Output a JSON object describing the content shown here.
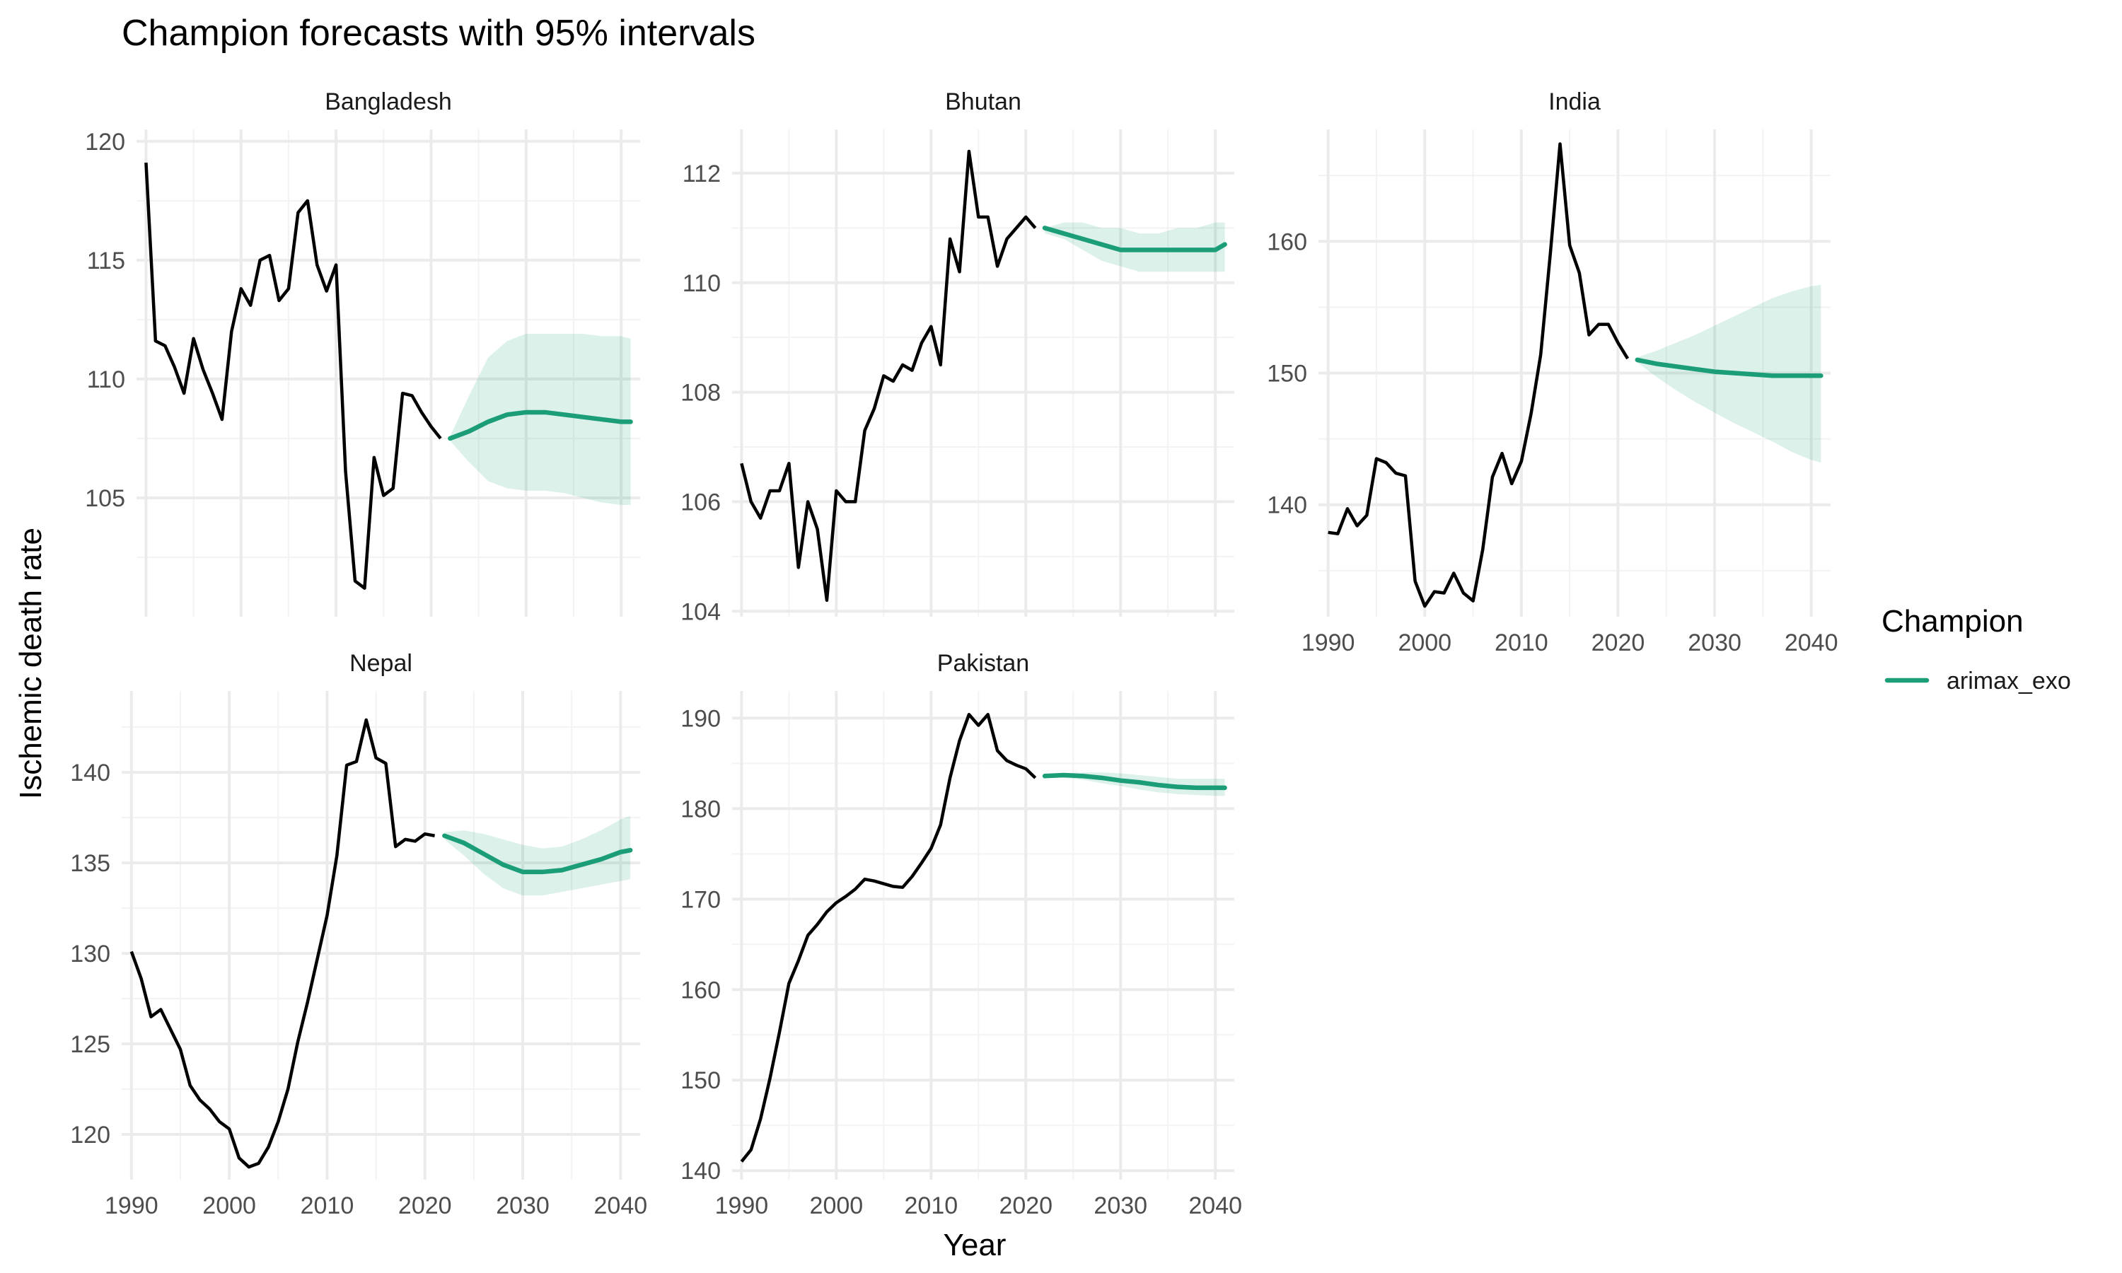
{
  "chart_data": {
    "type": "line",
    "title": "Champion forecasts with 95% intervals",
    "xlabel": "Year",
    "ylabel": "Ischemic death rate",
    "legend": {
      "title": "Champion",
      "placement": "right",
      "entries": [
        {
          "label": "arimax_exo",
          "color": "#1b9e77"
        }
      ]
    },
    "colors": {
      "history": "#000000",
      "forecast": "#1b9e77",
      "band": "#1b9e77"
    },
    "grid": true,
    "x_ticks": [
      1990,
      2000,
      2010,
      2020,
      2030,
      2040
    ],
    "xlim": [
      1989,
      2042
    ],
    "facets": [
      {
        "name": "Bangladesh",
        "ylim": [
          100,
          120.5
        ],
        "y_ticks": [
          105,
          110,
          115,
          120
        ],
        "history": {
          "x": [
            1990,
            1991,
            1992,
            1993,
            1994,
            1995,
            1996,
            1997,
            1998,
            1999,
            2000,
            2001,
            2002,
            2003,
            2004,
            2005,
            2006,
            2007,
            2008,
            2009,
            2010,
            2011,
            2012,
            2013,
            2014,
            2015,
            2016,
            2017,
            2018,
            2019,
            2020,
            2021
          ],
          "y": [
            119.1,
            111.6,
            111.4,
            110.5,
            109.4,
            111.7,
            110.4,
            109.4,
            108.3,
            112.0,
            113.8,
            113.1,
            115.0,
            115.2,
            113.3,
            113.8,
            117.0,
            117.5,
            114.8,
            113.7,
            114.8,
            106.1,
            101.5,
            101.2,
            106.7,
            105.1,
            105.4,
            109.4,
            109.3,
            108.6,
            108.0,
            107.5
          ]
        },
        "forecast": {
          "x": [
            2022,
            2024,
            2026,
            2028,
            2030,
            2032,
            2034,
            2036,
            2038,
            2040,
            2041
          ],
          "y": [
            107.5,
            107.8,
            108.2,
            108.5,
            108.6,
            108.6,
            108.5,
            108.4,
            108.3,
            108.2,
            108.2
          ],
          "lower": [
            107.4,
            106.5,
            105.7,
            105.4,
            105.3,
            105.3,
            105.2,
            105.0,
            104.8,
            104.7,
            104.7
          ],
          "upper": [
            107.6,
            109.3,
            110.9,
            111.6,
            111.9,
            111.9,
            111.9,
            111.9,
            111.8,
            111.8,
            111.7
          ]
        }
      },
      {
        "name": "Bhutan",
        "ylim": [
          103.9,
          112.8
        ],
        "y_ticks": [
          104,
          106,
          108,
          110,
          112
        ],
        "history": {
          "x": [
            1990,
            1991,
            1992,
            1993,
            1994,
            1995,
            1996,
            1997,
            1998,
            1999,
            2000,
            2001,
            2002,
            2003,
            2004,
            2005,
            2006,
            2007,
            2008,
            2009,
            2010,
            2011,
            2012,
            2013,
            2014,
            2015,
            2016,
            2017,
            2018,
            2019,
            2020,
            2021
          ],
          "y": [
            106.7,
            106.0,
            105.7,
            106.2,
            106.2,
            106.7,
            104.8,
            106.0,
            105.5,
            104.2,
            106.2,
            106.0,
            106.0,
            107.3,
            107.7,
            108.3,
            108.2,
            108.5,
            108.4,
            108.9,
            109.2,
            108.5,
            110.8,
            110.2,
            112.4,
            111.2,
            111.2,
            110.3,
            110.8,
            111.0,
            111.2,
            111.0
          ]
        },
        "forecast": {
          "x": [
            2022,
            2024,
            2026,
            2028,
            2030,
            2032,
            2034,
            2036,
            2038,
            2040,
            2041
          ],
          "y": [
            111.0,
            110.9,
            110.8,
            110.7,
            110.6,
            110.6,
            110.6,
            110.6,
            110.6,
            110.6,
            110.7
          ],
          "lower": [
            110.9,
            110.8,
            110.6,
            110.4,
            110.3,
            110.2,
            110.2,
            110.2,
            110.2,
            110.2,
            110.2
          ],
          "upper": [
            111.0,
            111.1,
            111.1,
            111.0,
            111.0,
            110.9,
            110.9,
            111.0,
            111.0,
            111.1,
            111.1
          ]
        }
      },
      {
        "name": "India",
        "ylim": [
          131.5,
          168.5
        ],
        "y_ticks": [
          140,
          150,
          160
        ],
        "history": {
          "x": [
            1990,
            1991,
            1992,
            1993,
            1994,
            1995,
            1996,
            1997,
            1998,
            1999,
            2000,
            2001,
            2002,
            2003,
            2004,
            2005,
            2006,
            2007,
            2008,
            2009,
            2010,
            2011,
            2012,
            2013,
            2014,
            2015,
            2016,
            2017,
            2018,
            2019,
            2020,
            2021
          ],
          "y": [
            137.9,
            137.8,
            139.7,
            138.4,
            139.2,
            143.5,
            143.2,
            142.4,
            142.2,
            134.2,
            132.3,
            133.4,
            133.3,
            134.8,
            133.3,
            132.7,
            136.6,
            142.1,
            143.9,
            141.6,
            143.3,
            146.9,
            151.4,
            159.1,
            167.4,
            159.7,
            157.6,
            152.9,
            153.7,
            153.7,
            152.3,
            151.1
          ]
        },
        "forecast": {
          "x": [
            2022,
            2024,
            2026,
            2028,
            2030,
            2032,
            2034,
            2036,
            2038,
            2040,
            2041
          ],
          "y": [
            151.0,
            150.7,
            150.5,
            150.3,
            150.1,
            150.0,
            149.9,
            149.8,
            149.8,
            149.8,
            149.8
          ],
          "lower": [
            150.8,
            149.7,
            148.7,
            147.8,
            147.0,
            146.2,
            145.5,
            144.8,
            144.0,
            143.4,
            143.2
          ],
          "upper": [
            151.2,
            151.7,
            152.3,
            152.9,
            153.6,
            154.3,
            155.0,
            155.7,
            156.2,
            156.6,
            156.7
          ]
        }
      },
      {
        "name": "Nepal",
        "ylim": [
          117.5,
          144.5
        ],
        "y_ticks": [
          120,
          125,
          130,
          135,
          140
        ],
        "history": {
          "x": [
            1990,
            1991,
            1992,
            1993,
            1994,
            1995,
            1996,
            1997,
            1998,
            1999,
            2000,
            2001,
            2002,
            2003,
            2004,
            2005,
            2006,
            2007,
            2008,
            2009,
            2010,
            2011,
            2012,
            2013,
            2014,
            2015,
            2016,
            2017,
            2018,
            2019,
            2020,
            2021
          ],
          "y": [
            130.1,
            128.6,
            126.5,
            126.9,
            125.8,
            124.7,
            122.7,
            121.9,
            121.4,
            120.7,
            120.3,
            118.7,
            118.2,
            118.4,
            119.3,
            120.7,
            122.5,
            125.1,
            127.3,
            129.7,
            132.1,
            135.4,
            140.4,
            140.6,
            142.9,
            140.8,
            140.5,
            135.9,
            136.3,
            136.2,
            136.6,
            136.5
          ]
        },
        "forecast": {
          "x": [
            2022,
            2024,
            2026,
            2028,
            2030,
            2032,
            2034,
            2036,
            2038,
            2040,
            2041
          ],
          "y": [
            136.5,
            136.1,
            135.5,
            134.9,
            134.5,
            134.5,
            134.6,
            134.9,
            135.2,
            135.6,
            135.7
          ],
          "lower": [
            136.3,
            135.4,
            134.4,
            133.6,
            133.2,
            133.2,
            133.4,
            133.6,
            133.8,
            134.0,
            134.1
          ],
          "upper": [
            136.7,
            136.8,
            136.6,
            136.3,
            136.0,
            135.8,
            135.9,
            136.3,
            136.8,
            137.4,
            137.6
          ]
        }
      },
      {
        "name": "Pakistan",
        "ylim": [
          139,
          193
        ],
        "y_ticks": [
          140,
          150,
          160,
          170,
          180,
          190
        ],
        "history": {
          "x": [
            1990,
            1991,
            1992,
            1993,
            1994,
            1995,
            1996,
            1997,
            1998,
            1999,
            2000,
            2001,
            2002,
            2003,
            2004,
            2005,
            2006,
            2007,
            2008,
            2009,
            2010,
            2011,
            2012,
            2013,
            2014,
            2015,
            2016,
            2017,
            2018,
            2019,
            2020,
            2021
          ],
          "y": [
            141.0,
            142.3,
            145.7,
            150.2,
            155.3,
            160.7,
            163.2,
            166.0,
            167.2,
            168.6,
            169.6,
            170.3,
            171.1,
            172.2,
            172.0,
            171.7,
            171.4,
            171.3,
            172.5,
            174.0,
            175.6,
            178.2,
            183.4,
            187.5,
            190.4,
            189.2,
            190.4,
            186.4,
            185.3,
            184.8,
            184.4,
            183.4
          ]
        },
        "forecast": {
          "x": [
            2022,
            2024,
            2026,
            2028,
            2030,
            2032,
            2034,
            2036,
            2038,
            2040,
            2041
          ],
          "y": [
            183.6,
            183.7,
            183.6,
            183.4,
            183.1,
            182.9,
            182.6,
            182.4,
            182.3,
            182.3,
            182.3
          ],
          "lower": [
            183.5,
            183.4,
            183.2,
            182.8,
            182.5,
            182.1,
            181.8,
            181.6,
            181.5,
            181.4,
            181.4
          ],
          "upper": [
            183.7,
            183.9,
            184.0,
            184.0,
            183.9,
            183.7,
            183.5,
            183.3,
            183.3,
            183.3,
            183.3
          ]
        }
      }
    ]
  }
}
